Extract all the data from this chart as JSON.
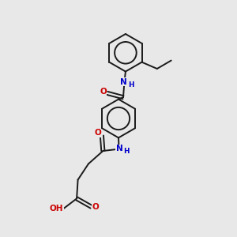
{
  "bg_color": "#e8e8e8",
  "bond_color": "#1a1a1a",
  "N_color": "#0000cc",
  "O_color": "#cc0000",
  "lw": 1.4,
  "fs": 7.5,
  "xlim": [
    0,
    10
  ],
  "ylim": [
    0,
    10
  ]
}
